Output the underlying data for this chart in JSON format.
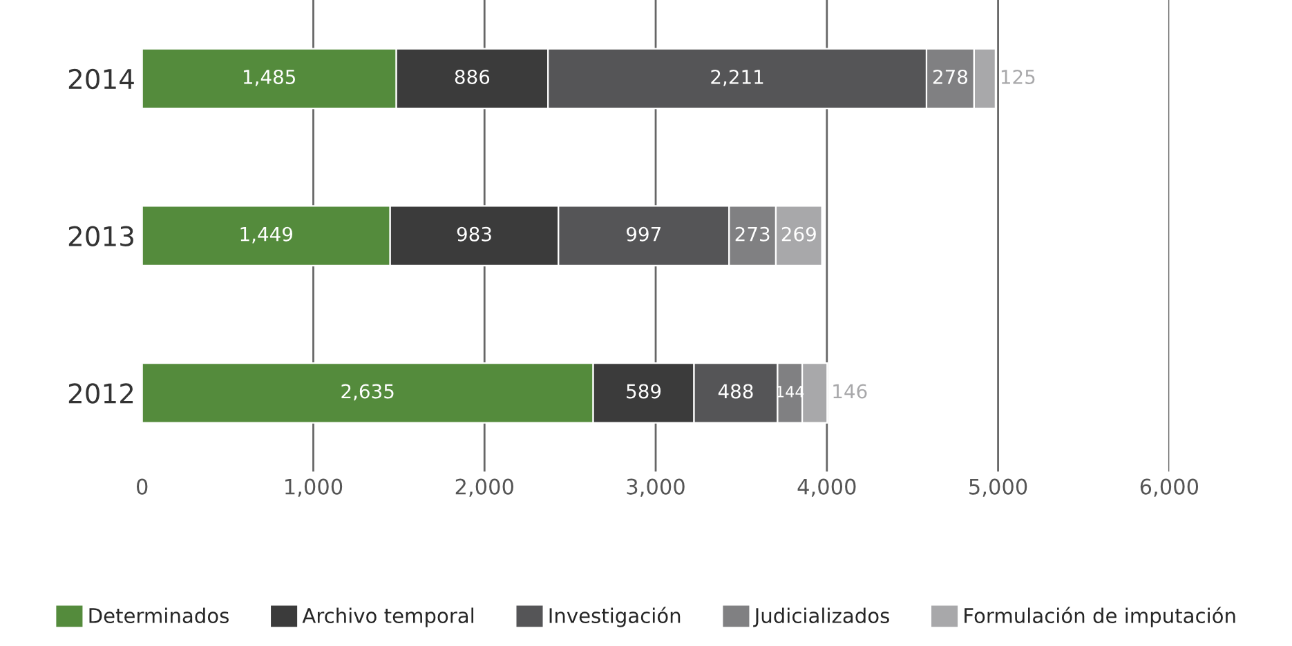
{
  "chart_data": {
    "type": "bar",
    "orientation": "horizontal",
    "stacked": true,
    "grid": "x",
    "legend": "bottom",
    "categories": [
      "2014",
      "2013",
      "2012"
    ],
    "series": [
      {
        "name": "Determinados",
        "color": "#548b3c",
        "values": [
          1485,
          1449,
          2635
        ],
        "value_labels": [
          "1,485",
          "1,449",
          "2,635"
        ]
      },
      {
        "name": "Archivo temporal",
        "color": "#3b3b3b",
        "values": [
          886,
          983,
          589
        ],
        "value_labels": [
          "886",
          "983",
          "589"
        ]
      },
      {
        "name": "Investigación",
        "color": "#555557",
        "values": [
          2211,
          997,
          488
        ],
        "value_labels": [
          "2,211",
          "997",
          "488"
        ]
      },
      {
        "name": "Judicializados",
        "color": "#808082",
        "values": [
          278,
          273,
          144
        ],
        "value_labels": [
          "278",
          "273",
          "144"
        ]
      },
      {
        "name": "Formulación de imputación",
        "color": "#a8a8aa",
        "values": [
          125,
          269,
          146
        ],
        "value_labels": [
          "125",
          "269",
          "146"
        ]
      }
    ],
    "xlim": [
      0,
      6000
    ],
    "xticks": [
      {
        "value": 0,
        "label": "0"
      },
      {
        "value": 1000,
        "label": "1,000"
      },
      {
        "value": 2000,
        "label": "2,000"
      },
      {
        "value": 3000,
        "label": "3,000"
      },
      {
        "value": 4000,
        "label": "4,000"
      },
      {
        "value": 5000,
        "label": "5,000"
      },
      {
        "value": 6000,
        "label": "6,000"
      }
    ]
  }
}
